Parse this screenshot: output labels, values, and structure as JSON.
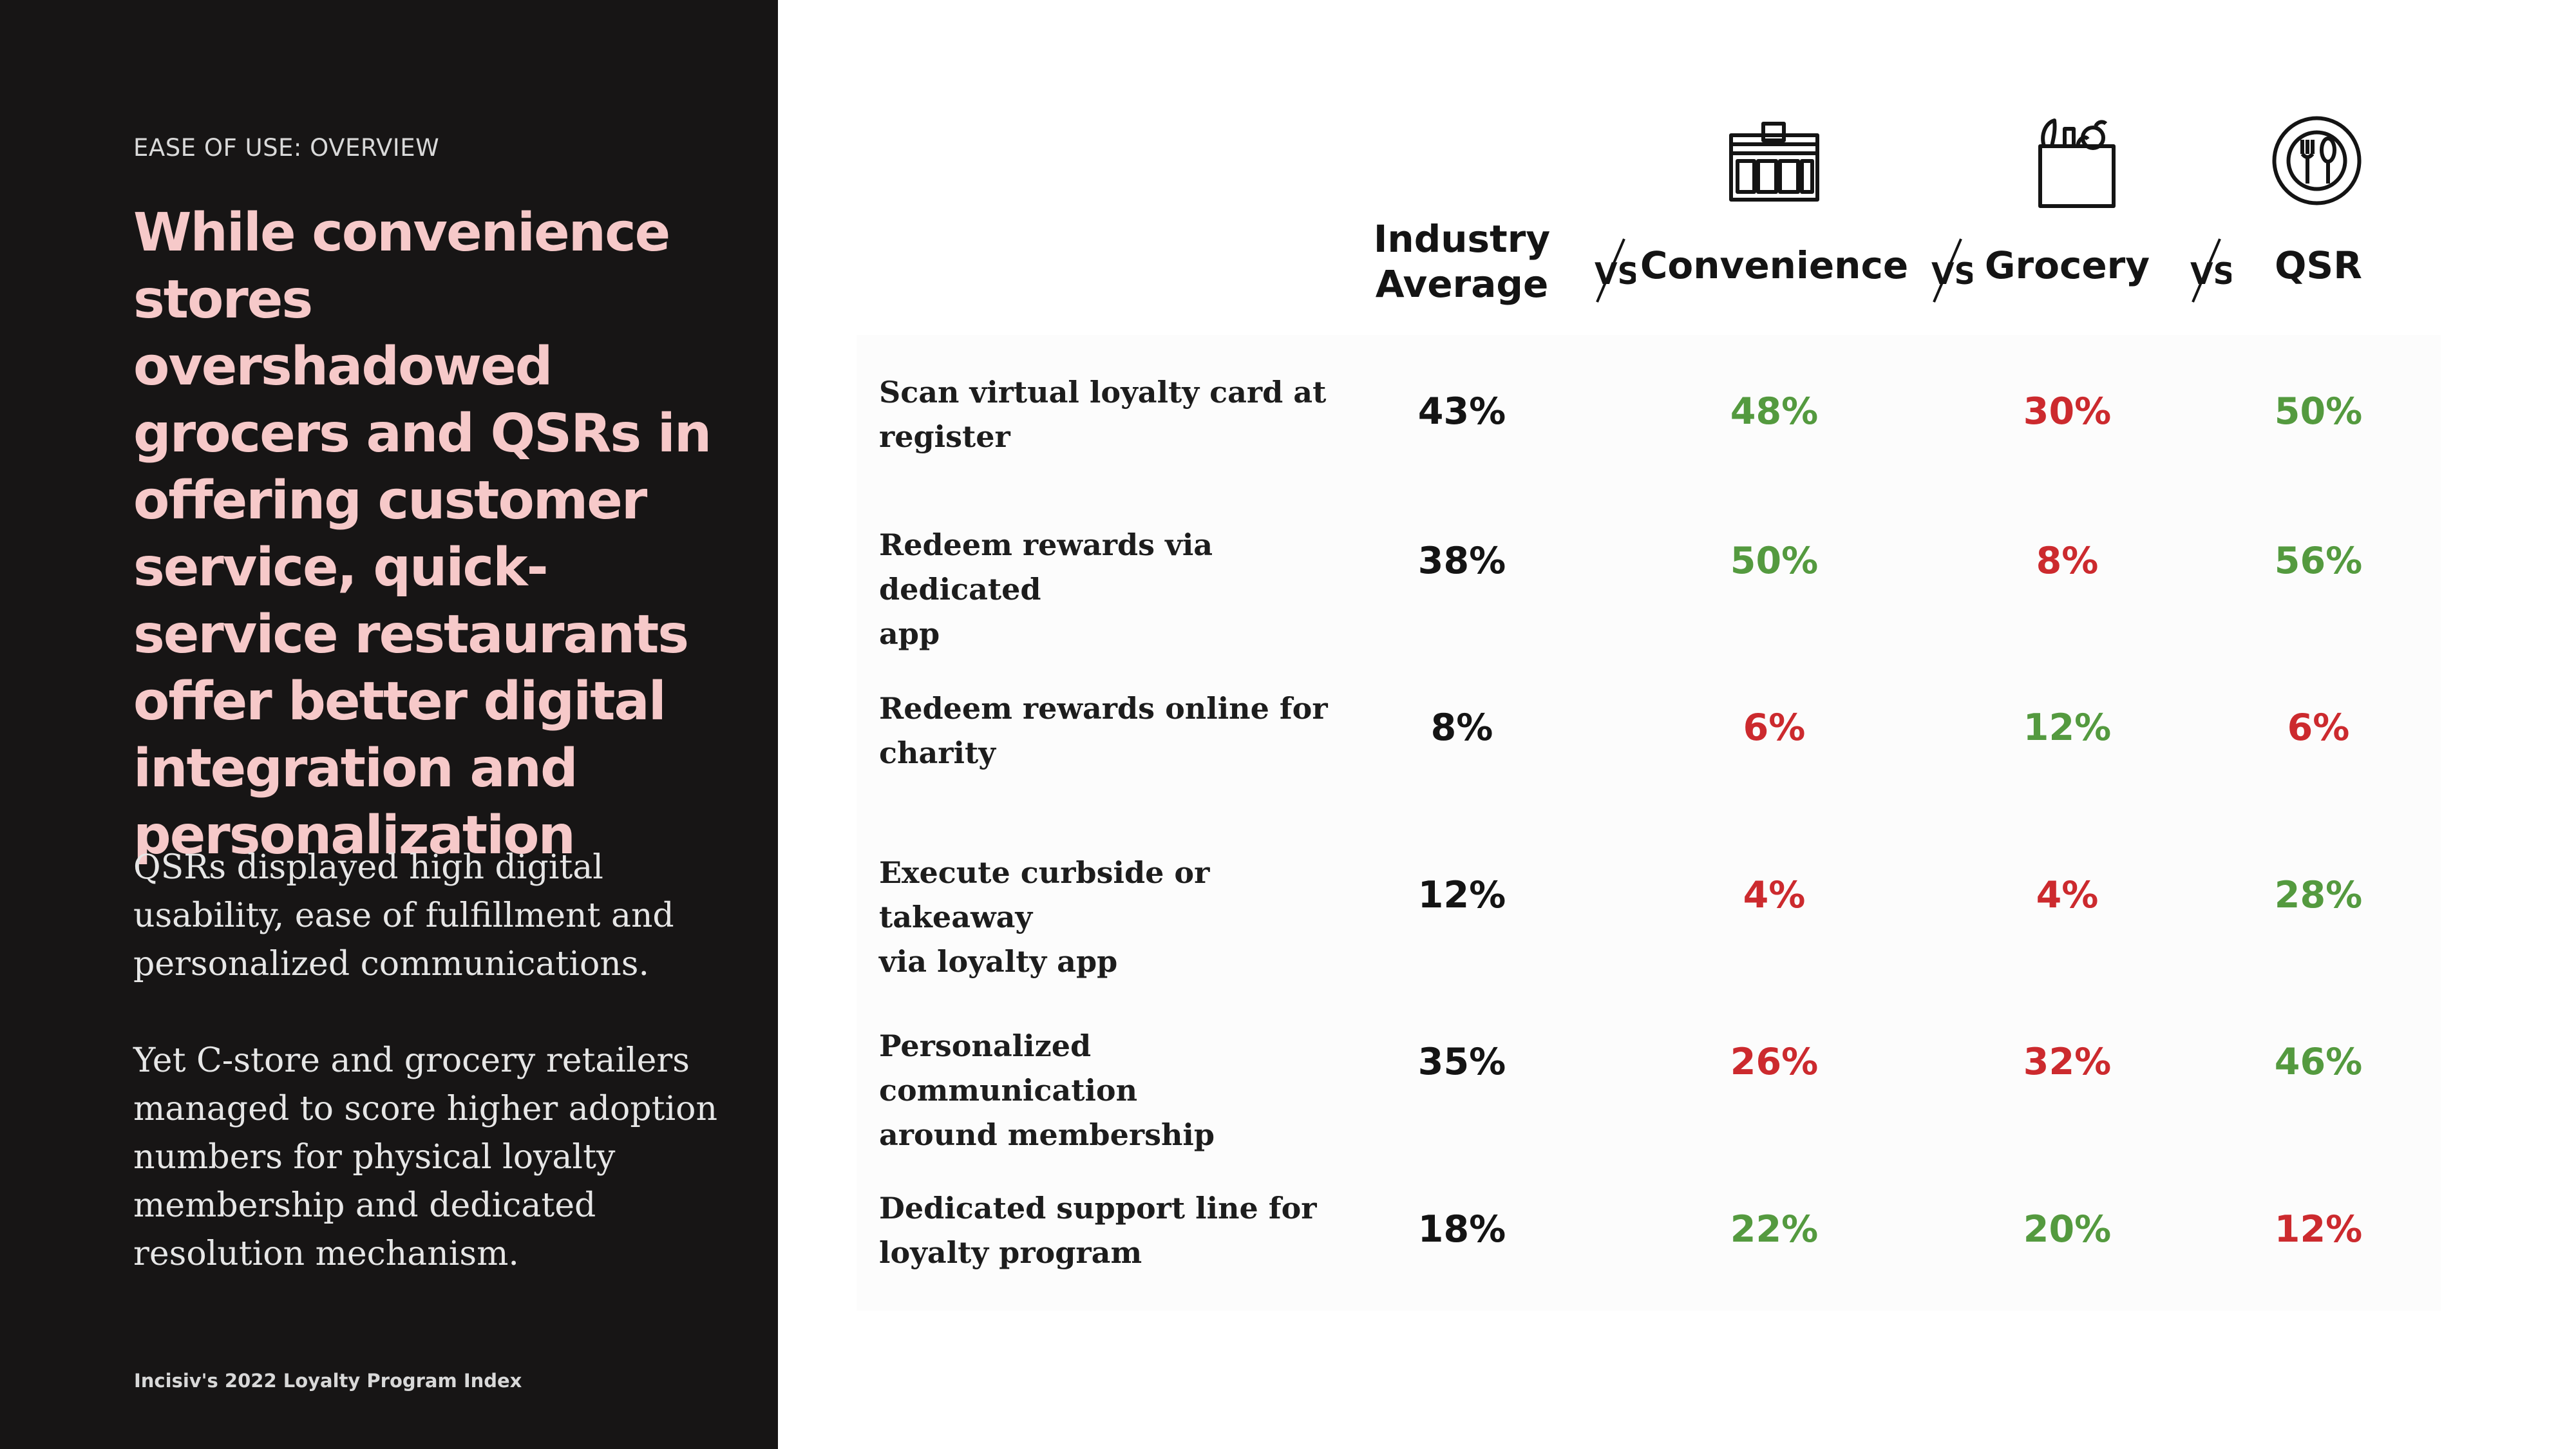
{
  "colors": {
    "panel": "#171515",
    "headline": "#f6c9c9",
    "high": "#549a3f",
    "low": "#cc2a2e",
    "neutral": "#141414"
  },
  "left": {
    "eyebrow": "EASE OF USE: OVERVIEW",
    "headline_lines": [
      "While convenience",
      "stores overshadowed",
      "grocers and QSRs in",
      "offering customer",
      "service, quick-",
      "service restaurants",
      "offer better digital",
      "integration and",
      "personalization"
    ],
    "para1_lines": [
      "QSRs displayed high digital",
      "usability, ease of fulfillment and",
      "personalized communications."
    ],
    "para2_lines": [
      "Yet C-store and grocery retailers",
      "managed to score higher adoption",
      "numbers for physical loyalty",
      "membership and dedicated",
      "resolution mechanism."
    ],
    "source": "Incisiv's 2022  Loyalty Program  Index"
  },
  "table": {
    "vs_label": "VS",
    "columns": [
      {
        "key": "avg",
        "lines": [
          "Industry",
          "Average"
        ],
        "icon": null
      },
      {
        "key": "conv",
        "lines": [
          "Convenience"
        ],
        "icon": "storefront-icon"
      },
      {
        "key": "groc",
        "lines": [
          "Grocery"
        ],
        "icon": "grocery-bag-icon"
      },
      {
        "key": "qsr",
        "lines": [
          "QSR"
        ],
        "icon": "plate-utensils-icon"
      }
    ],
    "rows": [
      {
        "label_lines": [
          "Scan virtual loyalty card at",
          "register"
        ],
        "values": [
          {
            "text": "43%",
            "tone": "neutral"
          },
          {
            "text": "48%",
            "tone": "high"
          },
          {
            "text": "30%",
            "tone": "low"
          },
          {
            "text": "50%",
            "tone": "high"
          }
        ]
      },
      {
        "label_lines": [
          "Redeem rewards via dedicated",
          "app"
        ],
        "values": [
          {
            "text": "38%",
            "tone": "neutral"
          },
          {
            "text": "50%",
            "tone": "high"
          },
          {
            "text": "8%",
            "tone": "low"
          },
          {
            "text": "56%",
            "tone": "high"
          }
        ]
      },
      {
        "label_lines": [
          "Redeem rewards online for",
          "charity"
        ],
        "values": [
          {
            "text": "8%",
            "tone": "neutral"
          },
          {
            "text": "6%",
            "tone": "low"
          },
          {
            "text": "12%",
            "tone": "high"
          },
          {
            "text": "6%",
            "tone": "low"
          }
        ]
      },
      {
        "label_lines": [
          "Execute curbside or takeaway",
          "via loyalty app"
        ],
        "values": [
          {
            "text": "12%",
            "tone": "neutral"
          },
          {
            "text": "4%",
            "tone": "low"
          },
          {
            "text": "4%",
            "tone": "low"
          },
          {
            "text": "28%",
            "tone": "high"
          }
        ]
      },
      {
        "label_lines": [
          "Personalized communication",
          "around membership"
        ],
        "values": [
          {
            "text": "35%",
            "tone": "neutral"
          },
          {
            "text": "26%",
            "tone": "low"
          },
          {
            "text": "32%",
            "tone": "low"
          },
          {
            "text": "46%",
            "tone": "high"
          }
        ]
      },
      {
        "label_lines": [
          "Dedicated support line for",
          "loyalty program"
        ],
        "values": [
          {
            "text": "18%",
            "tone": "neutral"
          },
          {
            "text": "22%",
            "tone": "high"
          },
          {
            "text": "20%",
            "tone": "high"
          },
          {
            "text": "12%",
            "tone": "low"
          }
        ]
      }
    ]
  }
}
